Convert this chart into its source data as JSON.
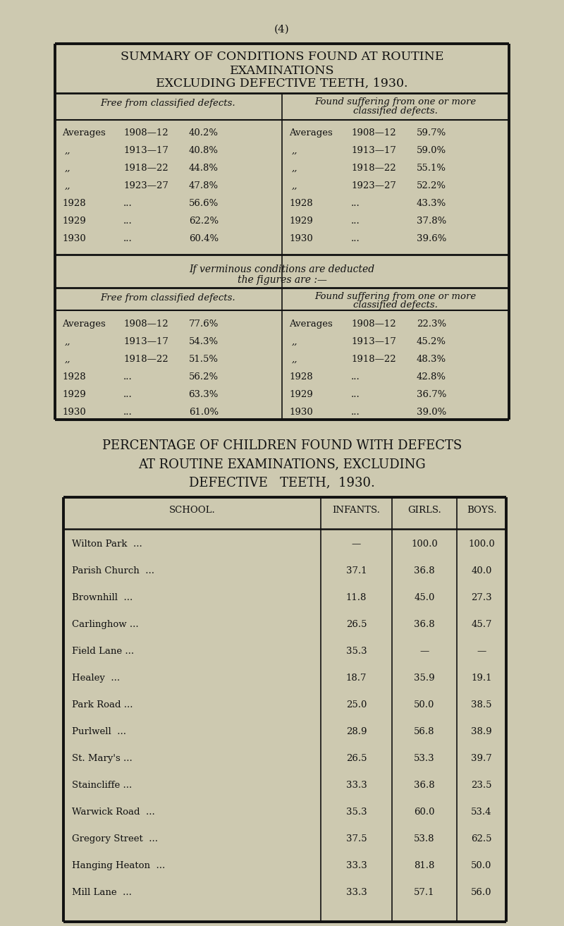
{
  "bg_color": "#cdc9b0",
  "page_number": "(4)",
  "title1": "SUMMARY OF CONDITIONS FOUND AT ROUTINE",
  "title2": "EXAMINATIONS",
  "title3": "EXCLUDING DEFECTIVE TEETH, 1930.",
  "col_header_left": "Free from classified defects.",
  "col_header_right_line1": "Found suffering from one or more",
  "col_header_right_line2": "classified defects.",
  "table1_left": [
    [
      "Averages",
      "1908—12",
      "40.2%"
    ],
    [
      ",,",
      "1913—17",
      "40.8%"
    ],
    [
      ",,",
      "1918—22",
      "44.8%"
    ],
    [
      ",,",
      "1923—27",
      "47.8%"
    ],
    [
      "1928",
      "...",
      "56.6%"
    ],
    [
      "1929",
      "...",
      "62.2%"
    ],
    [
      "1930",
      "...",
      "60.4%"
    ]
  ],
  "table1_right": [
    [
      "Averages",
      "1908—12",
      "59.7%"
    ],
    [
      ",,",
      "1913—17",
      "59.0%"
    ],
    [
      ",,",
      "1918—22",
      "55.1%"
    ],
    [
      ",,",
      "1923—27",
      "52.2%"
    ],
    [
      "1928",
      "...",
      "43.3%"
    ],
    [
      "1929",
      "...",
      "37.8%"
    ],
    [
      "1930",
      "...",
      "39.6%"
    ]
  ],
  "verminous_text1": "If verminous conditions are deducted",
  "verminous_text2": "the figures are :—",
  "table2_left": [
    [
      "Averages",
      "1908—12",
      "77.6%"
    ],
    [
      ",,",
      "1913—17",
      "54.3%"
    ],
    [
      ",,",
      "1918—22",
      "51.5%"
    ],
    [
      "1928",
      "...",
      "56.2%"
    ],
    [
      "1929",
      "...",
      "63.3%"
    ],
    [
      "1930",
      "...",
      "61.0%"
    ]
  ],
  "table2_right": [
    [
      "Averages",
      "1908—12",
      "22.3%"
    ],
    [
      ",,",
      "1913—17",
      "45.2%"
    ],
    [
      ",,",
      "1918—22",
      "48.3%"
    ],
    [
      "1928",
      "...",
      "42.8%"
    ],
    [
      "1929",
      "...",
      "36.7%"
    ],
    [
      "1930",
      "...",
      "39.0%"
    ]
  ],
  "pct_title1": "PERCENTAGE OF CHILDREN FOUND WITH DEFECTS",
  "pct_title2": "AT ROUTINE EXAMINATIONS, EXCLUDING",
  "pct_title3": "DEFECTIVE   TEETH,  1930.",
  "school_col_header": "SCHOOL.",
  "infants_col_header": "INFANTS.",
  "girls_col_header": "GIRLS.",
  "boys_col_header": "BOYS.",
  "schools": [
    [
      "Wilton Park",
      "—",
      "100.0",
      "100.0"
    ],
    [
      "Parish Church",
      "37.1",
      "36.8",
      "40.0"
    ],
    [
      "Brownhill",
      "11.8",
      "45.0",
      "27.3"
    ],
    [
      "Carlinghow ...",
      "26.5",
      "36.8",
      "45.7"
    ],
    [
      "Field Lane ...",
      "35.3",
      "—",
      "—"
    ],
    [
      "Healey",
      "18.7",
      "35.9",
      "19.1"
    ],
    [
      "Park Road ...",
      "25.0",
      "50.0",
      "38.5"
    ],
    [
      "Purlwell",
      "28.9",
      "56.8",
      "38.9"
    ],
    [
      "St. Mary's ...",
      "26.5",
      "53.3",
      "39.7"
    ],
    [
      "Staincliffe ...",
      "33.3",
      "36.8",
      "23.5"
    ],
    [
      "Warwick Road",
      "35.3",
      "60.0",
      "53.4"
    ],
    [
      "Gregory Street",
      "37.5",
      "53.8",
      "62.5"
    ],
    [
      "Hanging Heaton",
      "33.3",
      "81.8",
      "50.0"
    ],
    [
      "Mill Lane",
      "33.3",
      "57.1",
      "56.0"
    ]
  ]
}
